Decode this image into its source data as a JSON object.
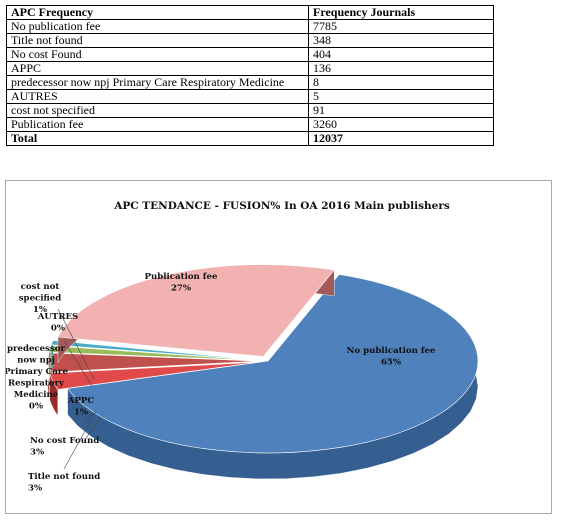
{
  "table": {
    "headers": [
      "APC Frequency",
      "Frequency Journals"
    ],
    "rows": [
      [
        "No publication fee",
        "7785"
      ],
      [
        "Title not found",
        "348"
      ],
      [
        "No cost Found",
        "404"
      ],
      [
        "APPC",
        "136"
      ],
      [
        "predecessor now npj Primary Care Respiratory Medicine",
        "8"
      ],
      [
        "AUTRES",
        "5"
      ],
      [
        "cost not specified",
        "91"
      ],
      [
        "Publication fee",
        "3260"
      ]
    ],
    "total": [
      "Total",
      "12037"
    ]
  },
  "chart_data": {
    "type": "pie",
    "title": "APC TENDANCE - FUSION% In OA 2016 Main publishers",
    "slices": [
      {
        "label": "No publication fee",
        "percent_label": "65%",
        "value": 7785,
        "color": "#4f81bd",
        "side": "#365f91"
      },
      {
        "label": "Title not found",
        "percent_label": "3%",
        "value": 348,
        "color": "#e04a4a",
        "side": "#9c2a2a"
      },
      {
        "label": "No cost Found",
        "percent_label": "3%",
        "value": 404,
        "color": "#c0504d",
        "side": "#8b2c2a"
      },
      {
        "label": "APPC",
        "percent_label": "1%",
        "value": 136,
        "color": "#9bbb59",
        "side": "#6f8a3a"
      },
      {
        "label": "predecessor now npj Primary Care Respiratory Medicine",
        "percent_label": "0%",
        "value": 8,
        "color": "#c3d69b",
        "side": "#8fa55e"
      },
      {
        "label": "AUTRES",
        "percent_label": "0%",
        "value": 5,
        "color": "#8064a2",
        "side": "#5c4777"
      },
      {
        "label": "cost not specified",
        "percent_label": "1%",
        "value": 91,
        "color": "#4bacc6",
        "side": "#2f7f94"
      },
      {
        "label": "Publication fee",
        "percent_label": "27%",
        "value": 3260,
        "color": "#f2b2b2",
        "side": "#a35a5a"
      }
    ]
  }
}
